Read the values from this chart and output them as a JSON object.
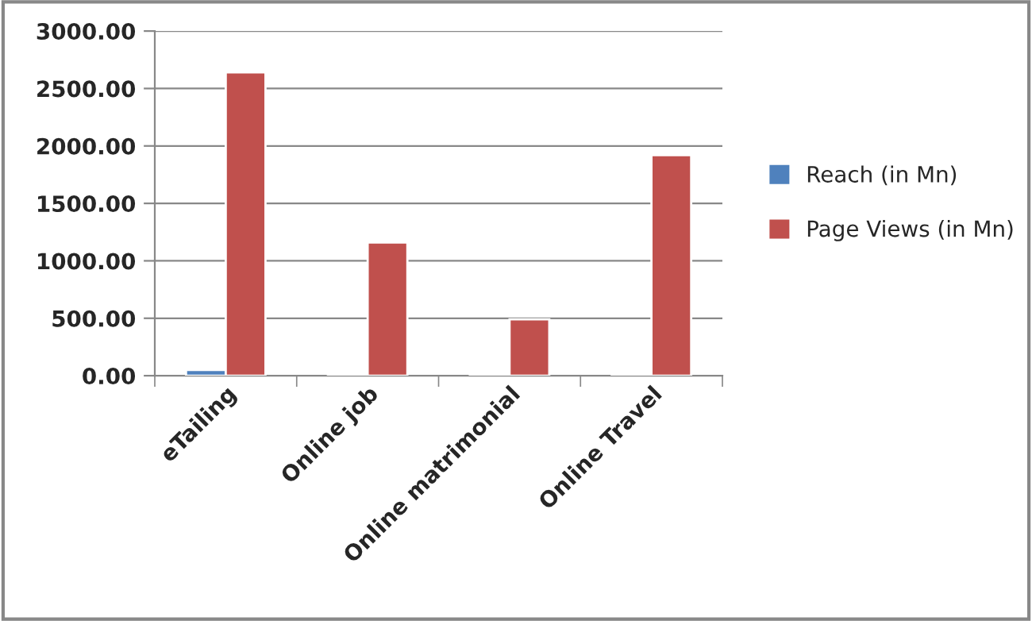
{
  "chart_data": {
    "type": "bar",
    "categories": [
      "eTailing",
      "Online job",
      "Online matrimonial",
      "Online Travel"
    ],
    "series": [
      {
        "name": "Reach (in Mn)",
        "color": "#4f81bd",
        "values": [
          50,
          15,
          15,
          15
        ]
      },
      {
        "name": "Page Views (in Mn)",
        "color": "#c0504d",
        "values": [
          2640,
          1160,
          490,
          1920
        ]
      }
    ],
    "ylim": [
      0,
      3000
    ],
    "yticks": [
      {
        "value": 0,
        "label": "0.00"
      },
      {
        "value": 500,
        "label": "500.00"
      },
      {
        "value": 1000,
        "label": "1000.00"
      },
      {
        "value": 1500,
        "label": "1500.00"
      },
      {
        "value": 2000,
        "label": "2000.00"
      },
      {
        "value": 2500,
        "label": "2500.00"
      },
      {
        "value": 3000,
        "label": "3000.00"
      }
    ],
    "grid": "y",
    "legend": "right"
  }
}
